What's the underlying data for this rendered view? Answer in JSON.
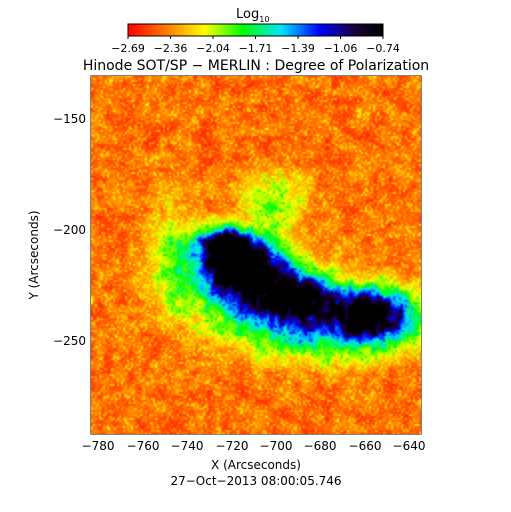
{
  "colorbar": {
    "title_main": "Log",
    "title_sub": "10",
    "tick_labels": [
      "−2.69",
      "−2.36",
      "−2.04",
      "−1.71",
      "−1.39",
      "−1.06",
      "−0.74"
    ],
    "colormap": [
      "#ff0000",
      "#ff7a00",
      "#ffff00",
      "#00ff00",
      "#00e6ff",
      "#0000ff",
      "#1a0033",
      "#000000"
    ]
  },
  "title": "Hinode SOT/SP − MERLIN : Degree of Polarization",
  "x_axis": {
    "label": "X (Arcseconds)",
    "ticks": [
      "−780",
      "−760",
      "−740",
      "−720",
      "−700",
      "−680",
      "−660",
      "−640"
    ]
  },
  "y_axis": {
    "label": "Y (Arcseconds)",
    "ticks": [
      "−150",
      "−200",
      "−250"
    ]
  },
  "timestamp": "27−Oct−2013 08:00:05.746"
}
